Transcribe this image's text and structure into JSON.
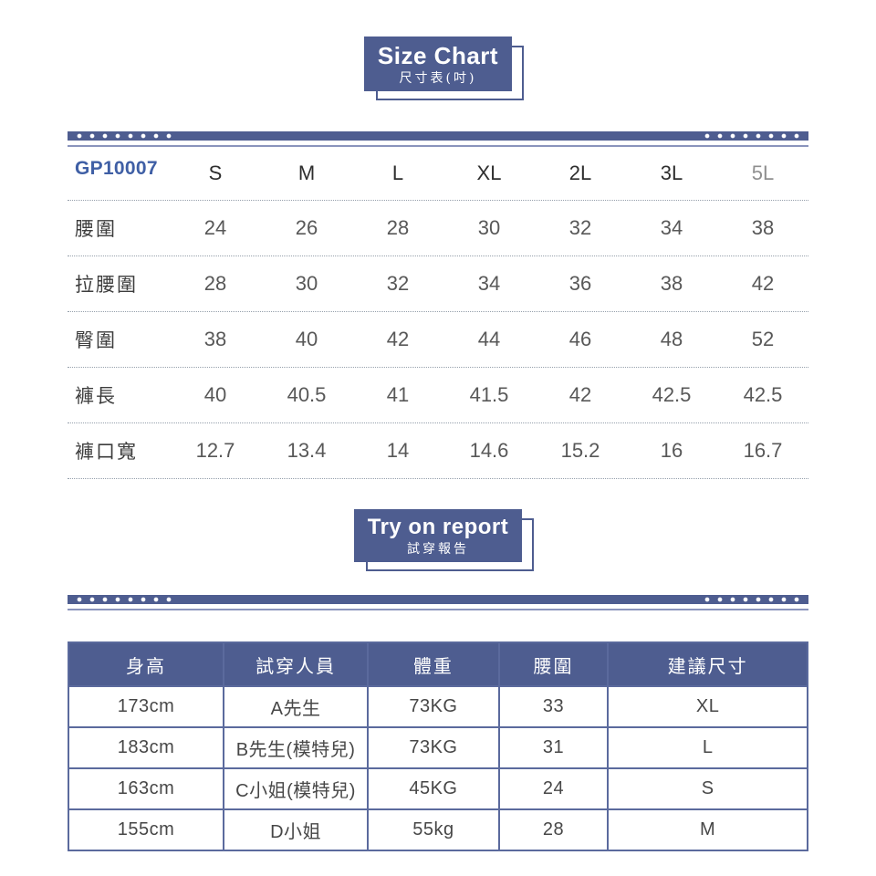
{
  "colors": {
    "accent": "#4e5d90",
    "accent-line": "#8a94bc",
    "code": "#3f5fa5",
    "table-border": "#5b6a9d"
  },
  "size_chart": {
    "title": "Size Chart",
    "subtitle": "尺寸表(吋)",
    "product_code": "GP10007",
    "columns": [
      "S",
      "M",
      "L",
      "XL",
      "2L",
      "3L",
      "5L"
    ],
    "rows": [
      {
        "label": "腰圍",
        "values": [
          "24",
          "26",
          "28",
          "30",
          "32",
          "34",
          "38"
        ]
      },
      {
        "label": "拉腰圍",
        "values": [
          "28",
          "30",
          "32",
          "34",
          "36",
          "38",
          "42"
        ]
      },
      {
        "label": "臀圍",
        "values": [
          "38",
          "40",
          "42",
          "44",
          "46",
          "48",
          "52"
        ]
      },
      {
        "label": "褲長",
        "values": [
          "40",
          "40.5",
          "41",
          "41.5",
          "42",
          "42.5",
          "42.5"
        ]
      },
      {
        "label": "褲口寬",
        "values": [
          "12.7",
          "13.4",
          "14",
          "14.6",
          "15.2",
          "16",
          "16.7"
        ]
      }
    ]
  },
  "try_on_report": {
    "title": "Try on report",
    "subtitle": "試穿報告",
    "headers": [
      "身高",
      "試穿人員",
      "體重",
      "腰圍",
      "建議尺寸"
    ],
    "rows": [
      [
        "173cm",
        "A先生",
        "73KG",
        "33",
        "XL"
      ],
      [
        "183cm",
        "B先生(模特兒)",
        "73KG",
        "31",
        "L"
      ],
      [
        "163cm",
        "C小姐(模特兒)",
        "45KG",
        "24",
        "S"
      ],
      [
        "155cm",
        "D小姐",
        "55kg",
        "28",
        "M"
      ]
    ]
  }
}
